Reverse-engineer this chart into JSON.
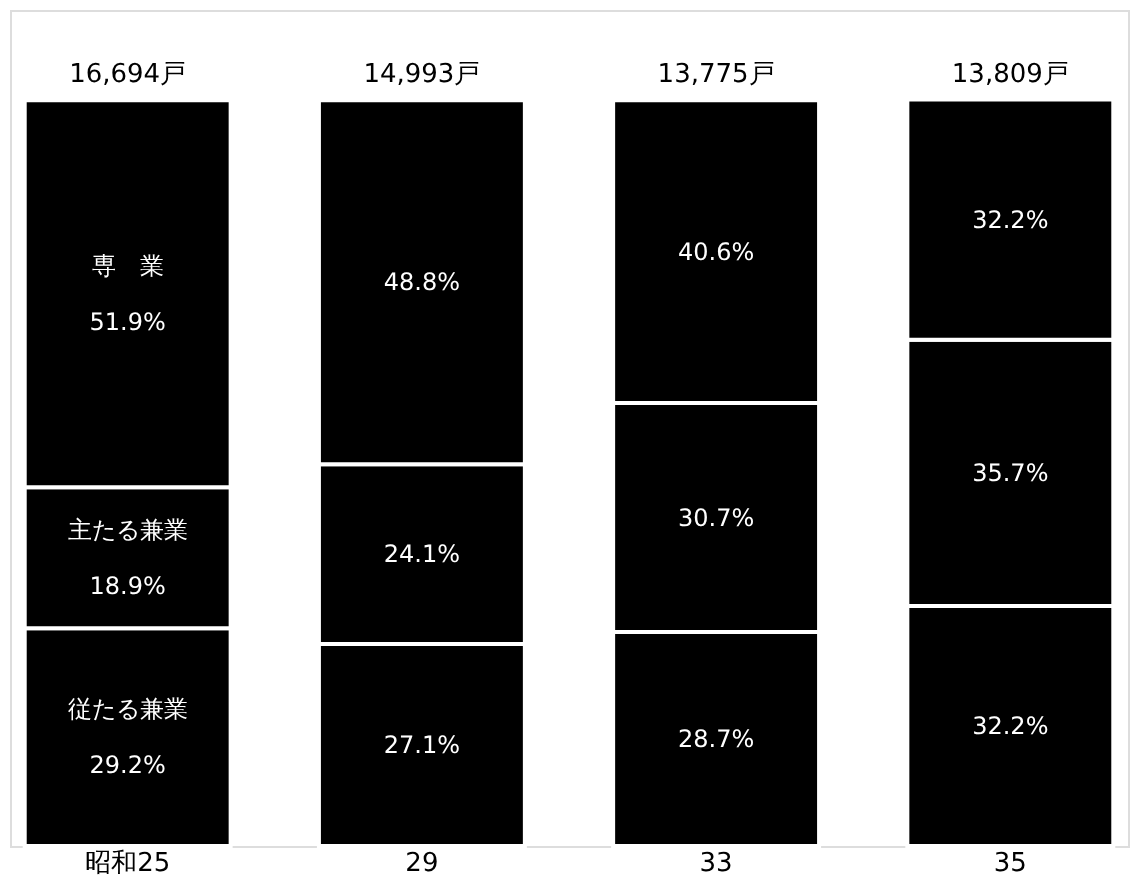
{
  "chart_data": {
    "type": "bar",
    "stacked": true,
    "categories": [
      "昭和25",
      "29",
      "33",
      "35"
    ],
    "series": [
      {
        "name": "従たる兼業",
        "color": "#000000",
        "values": [
          29.2,
          27.1,
          28.7,
          32.2
        ],
        "value_labels": [
          "29.2%",
          "27.1%",
          "28.7%",
          "32.2%"
        ]
      },
      {
        "name": "主たる兼業",
        "color": "#000000",
        "values": [
          18.9,
          24.1,
          30.7,
          35.7
        ],
        "value_labels": [
          "18.9%",
          "24.1%",
          "30.7%",
          "35.7%"
        ]
      },
      {
        "name": "専　業",
        "color": "#000000",
        "values": [
          51.9,
          48.8,
          40.6,
          32.2
        ],
        "value_labels": [
          "51.9%",
          "48.8%",
          "40.6%",
          "32.2%"
        ]
      }
    ],
    "annotations": [
      "16,694戸",
      "14,993戸",
      "13,775戸",
      "13,809戸"
    ],
    "grid": false
  }
}
